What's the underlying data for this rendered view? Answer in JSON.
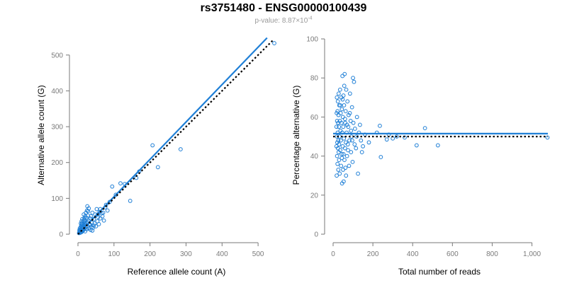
{
  "title": "rs3751480 - ENSG00000100439",
  "subtitle": {
    "prefix": "p-value: ",
    "mantissa": "8.87",
    "times": "×10",
    "exponent": "-4"
  },
  "colors": {
    "points": "#1f7fd6",
    "fit_line": "#1f7fd6",
    "reference_line": "#000000",
    "axis": "#7a7a7a"
  },
  "chart_data": [
    {
      "type": "scatter",
      "title": "",
      "xlabel": "Reference allele count (A)",
      "ylabel": "Alternative allele count (G)",
      "xlim": [
        0,
        545
      ],
      "ylim": [
        0,
        545
      ],
      "xticks": [
        0,
        100,
        200,
        300,
        400,
        500
      ],
      "xtick_labels": [
        "0",
        "100",
        "200",
        "300",
        "400",
        "500"
      ],
      "yticks": [
        0,
        100,
        200,
        300,
        400,
        500
      ],
      "ytick_labels": [
        "0",
        "100",
        "200",
        "300",
        "400",
        "500"
      ],
      "grid": false,
      "lines": [
        {
          "style": "solid",
          "color": "#1f7fd6",
          "x": [
            0,
            525
          ],
          "y": [
            0,
            548
          ]
        },
        {
          "style": "dotted",
          "color": "#000000",
          "x": [
            0,
            540
          ],
          "y": [
            0,
            540
          ]
        }
      ],
      "points": [
        [
          545,
          533
        ],
        [
          285,
          237
        ],
        [
          207,
          248
        ],
        [
          222,
          187
        ],
        [
          145,
          93
        ],
        [
          162,
          157
        ],
        [
          170,
          175
        ],
        [
          130,
          140
        ],
        [
          118,
          142
        ],
        [
          95,
          133
        ],
        [
          105,
          110
        ],
        [
          88,
          90
        ],
        [
          82,
          66
        ],
        [
          76,
          75
        ],
        [
          72,
          38
        ],
        [
          66,
          58
        ],
        [
          60,
          62
        ],
        [
          56,
          48
        ],
        [
          52,
          70
        ],
        [
          48,
          55
        ],
        [
          44,
          42
        ],
        [
          40,
          60
        ],
        [
          38,
          32
        ],
        [
          36,
          50
        ],
        [
          34,
          44
        ],
        [
          32,
          28
        ],
        [
          30,
          38
        ],
        [
          28,
          52
        ],
        [
          27,
          22
        ],
        [
          26,
          34
        ],
        [
          25,
          66
        ],
        [
          24,
          30
        ],
        [
          23,
          46
        ],
        [
          22,
          20
        ],
        [
          21,
          27
        ],
        [
          20,
          36
        ],
        [
          19,
          24
        ],
        [
          18,
          15
        ],
        [
          18,
          30
        ],
        [
          17,
          40
        ],
        [
          16,
          19
        ],
        [
          16,
          25
        ],
        [
          15,
          12
        ],
        [
          15,
          35
        ],
        [
          14,
          22
        ],
        [
          14,
          10
        ],
        [
          13,
          28
        ],
        [
          13,
          16
        ],
        [
          12,
          8
        ],
        [
          12,
          20
        ],
        [
          11,
          14
        ],
        [
          11,
          30
        ],
        [
          10,
          6
        ],
        [
          10,
          18
        ],
        [
          9,
          24
        ],
        [
          9,
          10
        ],
        [
          8,
          14
        ],
        [
          8,
          5
        ],
        [
          7,
          19
        ],
        [
          7,
          9
        ],
        [
          6,
          12
        ],
        [
          6,
          4
        ],
        [
          5,
          16
        ],
        [
          5,
          8
        ],
        [
          4,
          6
        ],
        [
          4,
          11
        ],
        [
          3,
          3
        ],
        [
          35,
          12
        ],
        [
          42,
          18
        ],
        [
          46,
          30
        ],
        [
          50,
          22
        ],
        [
          54,
          36
        ],
        [
          58,
          28
        ],
        [
          62,
          44
        ],
        [
          68,
          50
        ],
        [
          30,
          72
        ],
        [
          26,
          78
        ],
        [
          22,
          60
        ],
        [
          20,
          50
        ],
        [
          18,
          45
        ],
        [
          28,
          64
        ],
        [
          34,
          26
        ],
        [
          38,
          20
        ],
        [
          44,
          24
        ],
        [
          24,
          14
        ],
        [
          20,
          8
        ],
        [
          30,
          16
        ],
        [
          40,
          10
        ],
        [
          16,
          55
        ],
        [
          12,
          42
        ],
        [
          10,
          36
        ],
        [
          8,
          30
        ],
        [
          55,
          55
        ],
        [
          62,
          70
        ],
        [
          70,
          60
        ],
        [
          78,
          82
        ]
      ]
    },
    {
      "type": "scatter",
      "title": "",
      "xlabel": "Total number of reads",
      "ylabel": "Percentage alternative (G)",
      "xlim": [
        0,
        1080
      ],
      "ylim": [
        0,
        100
      ],
      "xticks": [
        0,
        200,
        400,
        600,
        800,
        1000
      ],
      "xtick_labels": [
        "0",
        "200",
        "400",
        "600",
        "800",
        "1,000"
      ],
      "yticks": [
        0,
        20,
        40,
        60,
        80,
        100
      ],
      "ytick_labels": [
        "0",
        "20",
        "40",
        "60",
        "80",
        "100"
      ],
      "grid": false,
      "lines": [
        {
          "style": "solid",
          "color": "#1f7fd6",
          "x": [
            0,
            1080
          ],
          "y": [
            51.5,
            51.5
          ]
        },
        {
          "style": "dotted",
          "color": "#000000",
          "x": [
            0,
            1080
          ],
          "y": [
            50,
            50
          ]
        }
      ],
      "points": [
        [
          1078,
          49.5
        ],
        [
          527,
          45.5
        ],
        [
          462,
          54.3
        ],
        [
          420,
          45.5
        ],
        [
          360,
          49.5
        ],
        [
          320,
          50
        ],
        [
          300,
          49
        ],
        [
          280,
          51
        ],
        [
          270,
          48.5
        ],
        [
          240,
          39.5
        ],
        [
          235,
          55.5
        ],
        [
          220,
          52
        ],
        [
          180,
          47
        ],
        [
          160,
          51
        ],
        [
          150,
          45
        ],
        [
          140,
          48
        ],
        [
          130,
          52
        ],
        [
          125,
          31
        ],
        [
          120,
          60
        ],
        [
          115,
          44
        ],
        [
          110,
          54
        ],
        [
          105,
          78
        ],
        [
          100,
          80
        ],
        [
          98,
          37
        ],
        [
          95,
          65
        ],
        [
          92,
          50
        ],
        [
          90,
          42
        ],
        [
          88,
          58
        ],
        [
          85,
          72
        ],
        [
          82,
          48
        ],
        [
          80,
          35
        ],
        [
          78,
          61
        ],
        [
          76,
          55
        ],
        [
          74,
          46
        ],
        [
          72,
          68
        ],
        [
          70,
          40
        ],
        [
          68,
          52
        ],
        [
          66,
          74
        ],
        [
          65,
          30
        ],
        [
          63,
          63
        ],
        [
          61,
          57
        ],
        [
          60,
          44
        ],
        [
          58,
          82
        ],
        [
          57,
          38
        ],
        [
          55,
          66
        ],
        [
          54,
          49
        ],
        [
          53,
          27
        ],
        [
          52,
          71
        ],
        [
          51,
          55
        ],
        [
          50,
          33
        ],
        [
          49,
          60
        ],
        [
          48,
          45
        ],
        [
          47,
          81
        ],
        [
          46,
          52
        ],
        [
          45,
          26
        ],
        [
          44,
          64
        ],
        [
          43,
          41
        ],
        [
          42,
          57
        ],
        [
          41,
          70
        ],
        [
          40,
          35
        ],
        [
          39,
          48
        ],
        [
          38,
          62
        ],
        [
          37,
          53
        ],
        [
          36,
          43
        ],
        [
          35,
          74
        ],
        [
          34,
          58
        ],
        [
          33,
          31
        ],
        [
          32,
          50
        ],
        [
          31,
          66
        ],
        [
          30,
          46
        ],
        [
          30,
          38
        ],
        [
          29,
          55
        ],
        [
          28,
          72
        ],
        [
          28,
          42
        ],
        [
          27,
          61
        ],
        [
          26,
          48
        ],
        [
          26,
          33
        ],
        [
          25,
          57
        ],
        [
          24,
          68
        ],
        [
          24,
          44
        ],
        [
          23,
          52
        ],
        [
          22,
          36
        ],
        [
          22,
          63
        ],
        [
          21,
          47
        ],
        [
          20,
          58
        ],
        [
          20,
          40
        ],
        [
          19,
          70
        ],
        [
          19,
          50
        ],
        [
          18,
          30
        ],
        [
          18,
          62
        ],
        [
          17,
          45
        ],
        [
          17,
          55
        ],
        [
          60,
          59
        ],
        [
          64,
          47
        ],
        [
          70,
          56
        ],
        [
          75,
          43
        ],
        [
          84,
          62
        ],
        [
          90,
          53
        ],
        [
          96,
          48
        ],
        [
          102,
          57
        ],
        [
          108,
          46
        ],
        [
          118,
          50
        ],
        [
          135,
          56
        ],
        [
          145,
          42
        ],
        [
          56,
          76
        ],
        [
          62,
          34
        ],
        [
          44,
          39
        ],
        [
          36,
          66
        ],
        [
          48,
          69
        ],
        [
          52,
          41
        ]
      ]
    }
  ]
}
